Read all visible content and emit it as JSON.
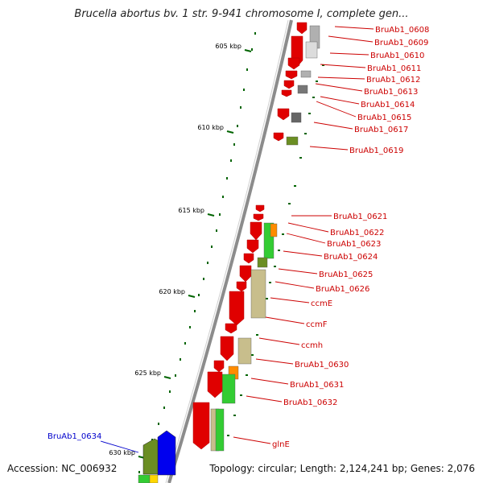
{
  "title": "Brucella abortus bv. 1 str. 9-941 chromosome I, complete gen...",
  "footer": {
    "accession": "Accession: NC_006932",
    "topology": "Topology: circular; Length: 2,124,241 bp; Genes: 2,076"
  },
  "colors": {
    "backbone": "#8c8c8c",
    "gene_red": "#e00000",
    "gene_green": "#33cc33",
    "gene_olive": "#6b8e23",
    "gene_khaki": "#c8be8c",
    "gene_orange": "#ff8c00",
    "gene_blue": "#0000ee",
    "gene_grey": "#b0b0b0",
    "label_red": "#cc0000",
    "label_blue": "#0000cc",
    "tick": "#006400"
  },
  "ticks": [
    "605 kbp",
    "610 kbp",
    "615 kbp",
    "620 kbp",
    "625 kbp",
    "630 kbp"
  ],
  "gene_labels": [
    {
      "text": "BruAb1_0608",
      "color": "red"
    },
    {
      "text": "BruAb1_0609",
      "color": "red"
    },
    {
      "text": "BruAb1_0610",
      "color": "red"
    },
    {
      "text": "BruAb1_0611",
      "color": "red"
    },
    {
      "text": "BruAb1_0612",
      "color": "red"
    },
    {
      "text": "BruAb1_0613",
      "color": "red"
    },
    {
      "text": "BruAb1_0614",
      "color": "red"
    },
    {
      "text": "BruAb1_0615",
      "color": "red"
    },
    {
      "text": "BruAb1_0617",
      "color": "red"
    },
    {
      "text": "BruAb1_0619",
      "color": "red"
    },
    {
      "text": "BruAb1_0621",
      "color": "red"
    },
    {
      "text": "BruAb1_0622",
      "color": "red"
    },
    {
      "text": "BruAb1_0623",
      "color": "red"
    },
    {
      "text": "BruAb1_0624",
      "color": "red"
    },
    {
      "text": "BruAb1_0625",
      "color": "red"
    },
    {
      "text": "BruAb1_0626",
      "color": "red"
    },
    {
      "text": "ccmE",
      "color": "red"
    },
    {
      "text": "ccmF",
      "color": "red"
    },
    {
      "text": "ccmh",
      "color": "red"
    },
    {
      "text": "BruAb1_0630",
      "color": "red"
    },
    {
      "text": "BruAb1_0631",
      "color": "red"
    },
    {
      "text": "BruAb1_0632",
      "color": "red"
    },
    {
      "text": "glnE",
      "color": "red"
    },
    {
      "text": "BruAb1_0634",
      "color": "blue"
    }
  ]
}
